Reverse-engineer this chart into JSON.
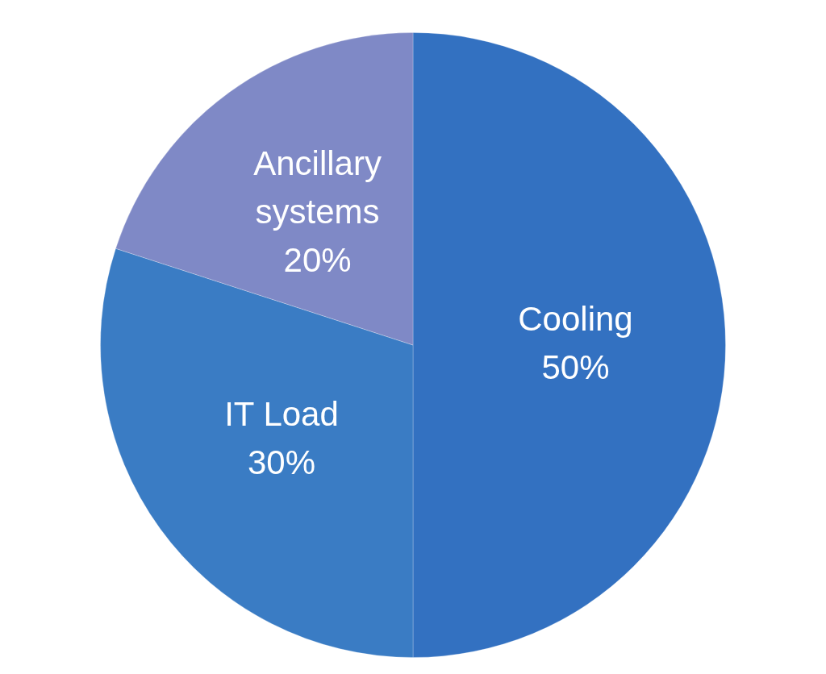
{
  "chart_data": {
    "type": "pie",
    "categories": [
      "Cooling",
      "IT Load",
      "Ancillary systems"
    ],
    "values": [
      50,
      30,
      20
    ],
    "colors": [
      "#3371c1",
      "#3a7cc4",
      "#7f89c6"
    ],
    "value_labels": [
      "50%",
      "30%",
      "20%"
    ]
  }
}
